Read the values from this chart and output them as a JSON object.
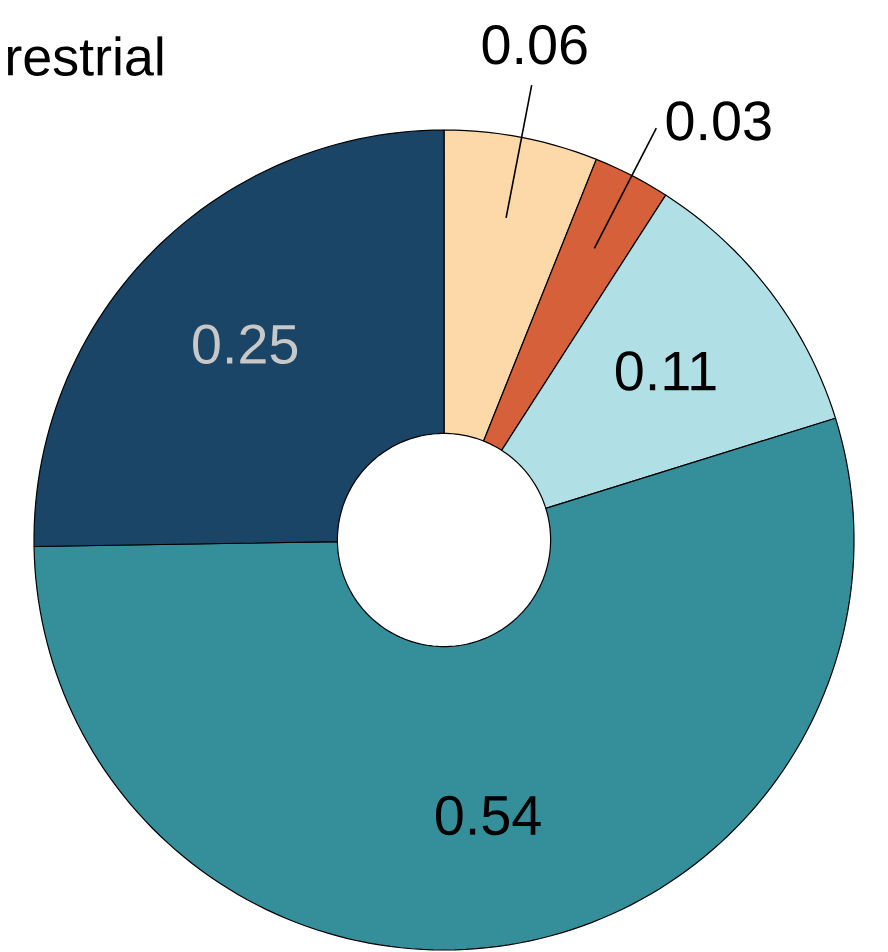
{
  "chart_data": {
    "type": "donut",
    "annotations": [
      "restrial"
    ],
    "categories": [
      null,
      null,
      null,
      null,
      null
    ],
    "values": [
      0.06,
      0.03,
      0.11,
      0.54,
      0.25
    ],
    "colors": [
      "#fdd8a8",
      "#d6603a",
      "#b0dfe5",
      "#358f9a",
      "#1b4566"
    ],
    "data_labels": true
  }
}
